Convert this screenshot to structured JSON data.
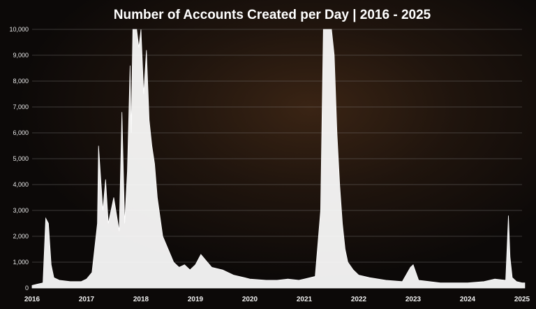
{
  "chart_data": {
    "type": "area",
    "title": "Number of Accounts Created per Day | 2016 - 2025",
    "xlabel": "",
    "ylabel": "",
    "ylim": [
      0,
      10000
    ],
    "yticks": [
      "0",
      "1,000",
      "2,000",
      "3,000",
      "4,000",
      "5,000",
      "6,000",
      "7,000",
      "8,000",
      "9,000",
      "10,000"
    ],
    "xticks": [
      "2016",
      "2017",
      "2018",
      "2019",
      "2020",
      "2021",
      "2022",
      "2023",
      "2024",
      "2025"
    ],
    "grid": true,
    "legend": "none",
    "series": [
      {
        "color": "#ffffff",
        "x": [
          2016.0,
          2016.1,
          2016.2,
          2016.25,
          2016.3,
          2016.35,
          2016.4,
          2016.5,
          2016.7,
          2016.9,
          2017.0,
          2017.1,
          2017.2,
          2017.22,
          2017.3,
          2017.35,
          2017.4,
          2017.5,
          2017.6,
          2017.65,
          2017.7,
          2017.75,
          2017.8,
          2017.82,
          2017.85,
          2017.88,
          2017.92,
          2017.96,
          2018.0,
          2018.05,
          2018.1,
          2018.15,
          2018.2,
          2018.25,
          2018.3,
          2018.4,
          2018.5,
          2018.6,
          2018.7,
          2018.8,
          2018.9,
          2019.0,
          2019.1,
          2019.3,
          2019.5,
          2019.7,
          2019.9,
          2020.0,
          2020.3,
          2020.5,
          2020.7,
          2020.9,
          2021.0,
          2021.2,
          2021.3,
          2021.35,
          2021.4,
          2021.45,
          2021.5,
          2021.55,
          2021.6,
          2021.65,
          2021.7,
          2021.75,
          2021.8,
          2021.9,
          2022.0,
          2022.2,
          2022.5,
          2022.8,
          2022.95,
          2023.0,
          2023.1,
          2023.3,
          2023.5,
          2023.8,
          2024.0,
          2024.3,
          2024.5,
          2024.7,
          2024.75,
          2024.78,
          2024.82,
          2024.9,
          2025.0,
          2025.05
        ],
        "values": [
          100,
          150,
          200,
          2700,
          2500,
          900,
          400,
          300,
          250,
          250,
          350,
          600,
          2500,
          5500,
          3000,
          4200,
          2500,
          3500,
          2200,
          6800,
          2500,
          4500,
          8600,
          6000,
          10000,
          10000,
          10000,
          9300,
          10000,
          7500,
          9200,
          6500,
          5500,
          4800,
          3500,
          2000,
          1500,
          1000,
          800,
          900,
          700,
          900,
          1300,
          800,
          700,
          500,
          400,
          350,
          300,
          300,
          350,
          300,
          350,
          450,
          3000,
          10000,
          10000,
          10000,
          10000,
          9000,
          6000,
          4000,
          2500,
          1500,
          1000,
          700,
          500,
          400,
          300,
          250,
          800,
          900,
          300,
          250,
          200,
          200,
          200,
          250,
          350,
          300,
          2800,
          1200,
          400,
          250,
          200,
          200
        ]
      }
    ]
  }
}
